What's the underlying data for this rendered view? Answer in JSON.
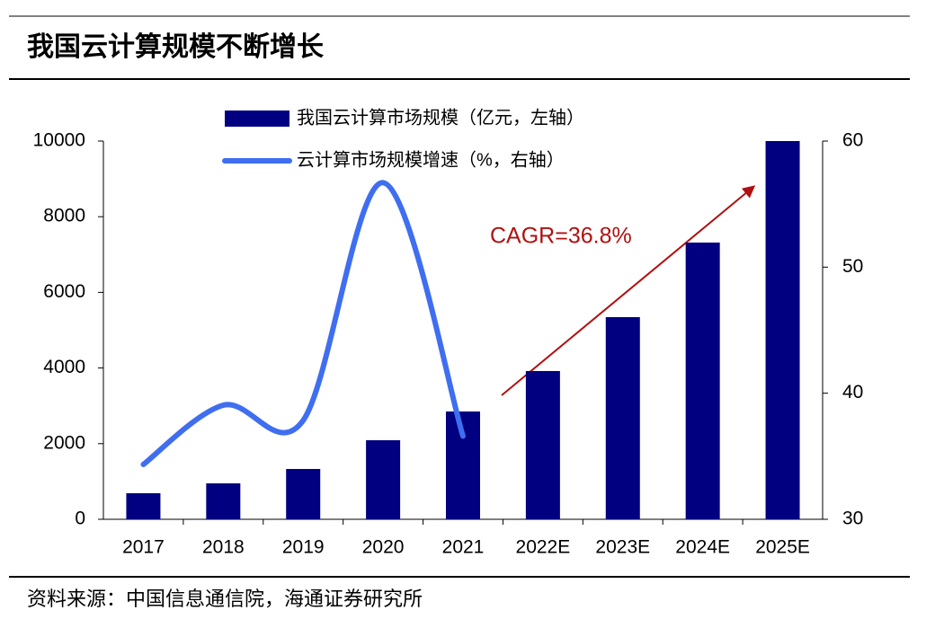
{
  "chart_data": {
    "type": "bar_line",
    "title": "我国云计算规模不断增长",
    "source": "资料来源：中国信息通信院，海通证券研究所",
    "annotation": "CAGR=36.8%",
    "categories": [
      "2017",
      "2018",
      "2019",
      "2020",
      "2021",
      "2022E",
      "2023E",
      "2024E",
      "2025E"
    ],
    "series": [
      {
        "name": "我国云计算市场规模（亿元，左轴）",
        "color": "#000080",
        "type": "bar",
        "values": [
          689,
          950,
          1330,
          2090,
          2850,
          3920,
          5345,
          7316,
          10000
        ]
      },
      {
        "name": "云计算市场规模增速（%，右轴）",
        "color": "#3f6ef0",
        "type": "line",
        "axis": "y2",
        "values": [
          34.35,
          39.05,
          37.84,
          56.7,
          36.6,
          null,
          null,
          null,
          null
        ]
      }
    ],
    "ylim": [
      0,
      10000
    ],
    "yticks": [
      0,
      2000,
      4000,
      6000,
      8000,
      10000
    ],
    "y2lim": [
      30,
      60
    ],
    "y2ticks": [
      30,
      40,
      50,
      60
    ]
  }
}
